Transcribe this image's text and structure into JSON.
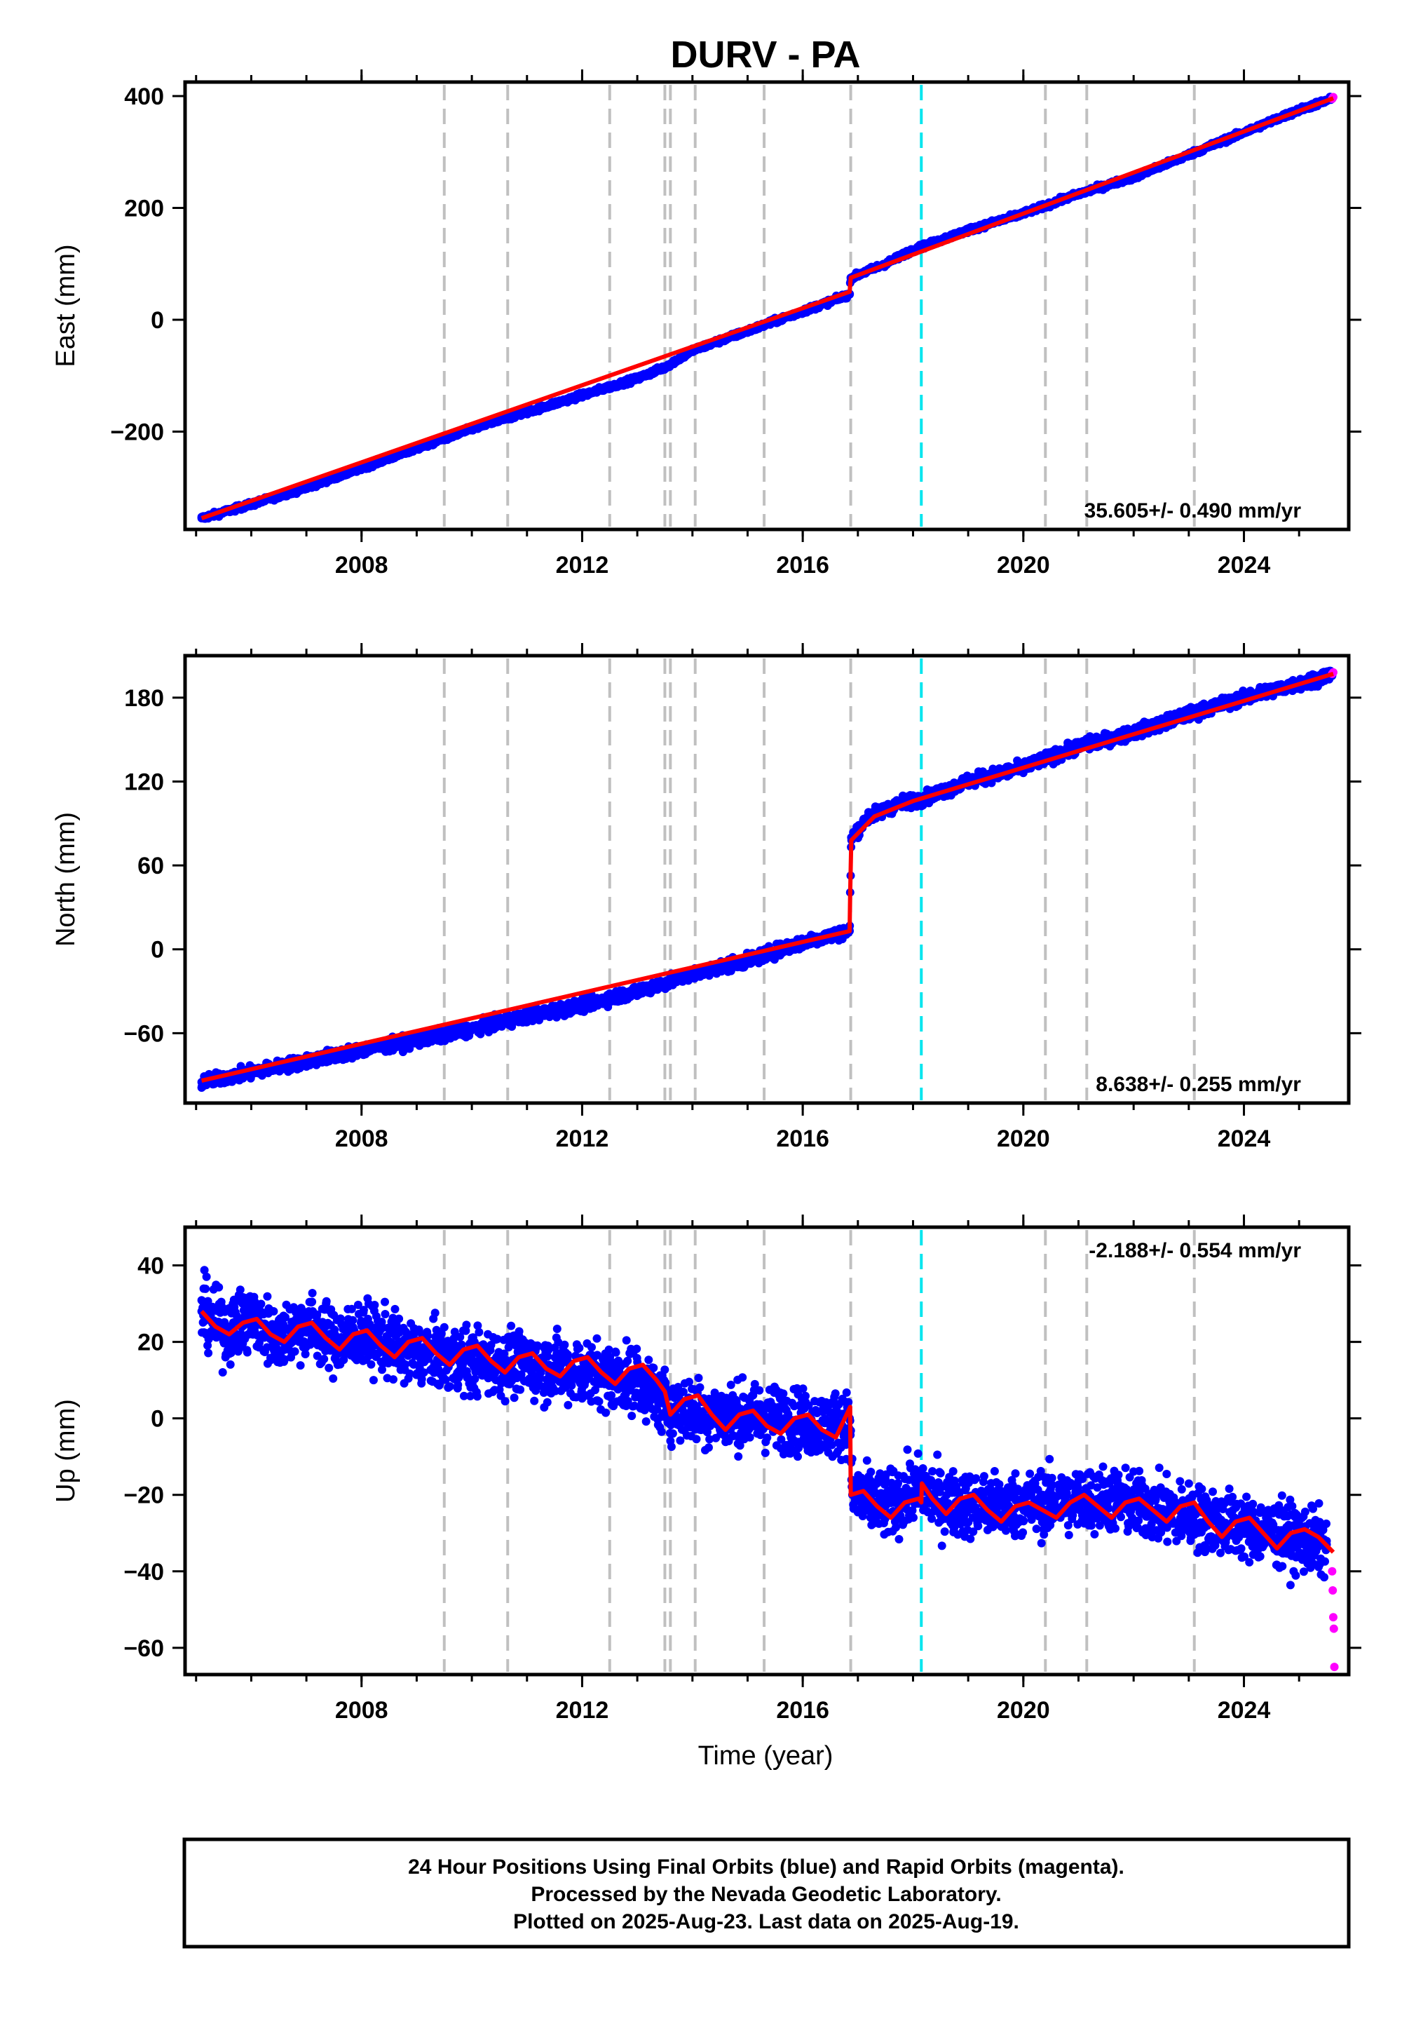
{
  "title": "DURV - PA",
  "xlabel": "Time (year)",
  "footer": {
    "line1": "24 Hour Positions Using Final Orbits (blue) and Rapid Orbits (magenta).",
    "line2": "Processed by the Nevada Geodetic Laboratory.",
    "line3": "Plotted on 2025-Aug-23. Last data on 2025-Aug-19."
  },
  "colors": {
    "final": "#0000ff",
    "rapid": "#ff00ff",
    "model": "#ff0000",
    "event": "#c0c0c0",
    "antenna": "#00e5ee"
  },
  "chart_data": [
    {
      "type": "scatter",
      "panel": "east",
      "ylabel": "East (mm)",
      "rate": "35.605+/- 0.490 mm/yr",
      "xlim": [
        2004.8,
        2025.9
      ],
      "ylim": [
        -375,
        425
      ],
      "xticks": [
        2008,
        2012,
        2016,
        2020,
        2024
      ],
      "yticks": [
        -200,
        0,
        200,
        400
      ],
      "series": [
        {
          "kind": "final",
          "x": [
            2005.1,
            2006.0,
            2007.0,
            2008.0,
            2009.0,
            2010.0,
            2011.0,
            2012.0,
            2013.0,
            2013.5,
            2014.0,
            2015.0,
            2016.0,
            2016.85,
            2016.87,
            2017.5,
            2018.0,
            2019.0,
            2020.0,
            2021.0,
            2022.0,
            2023.0,
            2024.0,
            2025.0,
            2025.6
          ],
          "y": [
            -355,
            -330,
            -300,
            -265,
            -230,
            -195,
            -165,
            -135,
            -105,
            -85,
            -55,
            -20,
            15,
            45,
            75,
            100,
            125,
            160,
            190,
            225,
            255,
            295,
            335,
            375,
            395
          ]
        },
        {
          "kind": "rapid",
          "x": [
            2025.6,
            2025.62
          ],
          "y": [
            395,
            398
          ]
        }
      ],
      "model": {
        "x": [
          2005.1,
          2016.85,
          2016.87,
          2025.62
        ],
        "y": [
          -355,
          50,
          75,
          396
        ]
      },
      "offsets": [
        2009.5,
        2010.65,
        2012.5,
        2013.5,
        2013.6,
        2014.05,
        2015.3,
        2016.87,
        2020.4,
        2021.15,
        2023.1
      ],
      "antenna_change": 2018.15
    },
    {
      "type": "scatter",
      "panel": "north",
      "ylabel": "North (mm)",
      "rate": "8.638+/- 0.255 mm/yr",
      "xlim": [
        2004.8,
        2025.9
      ],
      "ylim": [
        -110,
        210
      ],
      "xticks": [
        2008,
        2012,
        2016,
        2020,
        2024
      ],
      "yticks": [
        -60,
        0,
        60,
        120,
        180
      ],
      "series": [
        {
          "kind": "final",
          "x": [
            2005.1,
            2006.0,
            2007.0,
            2008.0,
            2009.0,
            2010.0,
            2011.0,
            2012.0,
            2013.0,
            2014.0,
            2015.0,
            2016.0,
            2016.85,
            2016.88,
            2017.2,
            2017.8,
            2018.2,
            2019.0,
            2020.0,
            2021.0,
            2022.0,
            2023.0,
            2024.0,
            2025.0,
            2025.6
          ],
          "y": [
            -95,
            -88,
            -80,
            -72,
            -65,
            -57,
            -48,
            -40,
            -30,
            -18,
            -8,
            5,
            13,
            80,
            95,
            105,
            108,
            120,
            130,
            145,
            155,
            168,
            180,
            190,
            197
          ]
        },
        {
          "kind": "rapid",
          "x": [
            2025.6,
            2025.62
          ],
          "y": [
            197,
            198
          ]
        }
      ],
      "model": {
        "x": [
          2005.1,
          2016.85,
          2016.86,
          2016.88,
          2017.3,
          2018.0,
          2025.62
        ],
        "y": [
          -94,
          13,
          40,
          78,
          95,
          106,
          197
        ]
      },
      "offsets": [
        2009.5,
        2010.65,
        2012.5,
        2013.5,
        2013.6,
        2014.05,
        2015.3,
        2016.87,
        2020.4,
        2021.15,
        2023.1
      ],
      "antenna_change": 2018.15
    },
    {
      "type": "scatter",
      "panel": "up",
      "ylabel": "Up (mm)",
      "rate": "-2.188+/- 0.554 mm/yr",
      "xlim": [
        2004.8,
        2025.9
      ],
      "ylim": [
        -67,
        50
      ],
      "xticks": [
        2008,
        2012,
        2016,
        2020,
        2024
      ],
      "yticks": [
        -60,
        -40,
        -20,
        0,
        20,
        40
      ],
      "series": [
        {
          "kind": "final",
          "x": [
            2005.1,
            2005.5,
            2006.0,
            2006.5,
            2007.0,
            2007.5,
            2008.0,
            2009.0,
            2010.0,
            2011.0,
            2012.0,
            2013.0,
            2013.6,
            2014.5,
            2015.5,
            2016.5,
            2016.85,
            2016.9,
            2017.5,
            2018.15,
            2018.5,
            2019.5,
            2020.5,
            2021.5,
            2022.5,
            2023.5,
            2024.5,
            2025.5
          ],
          "y": [
            28,
            23,
            26,
            21,
            25,
            20,
            22,
            17,
            15,
            14,
            12,
            10,
            3,
            1,
            0,
            -2,
            0,
            -20,
            -23,
            -18,
            -22,
            -23,
            -22,
            -21,
            -24,
            -27,
            -30,
            -33
          ]
        },
        {
          "kind": "rapid",
          "x": [
            2025.6,
            2025.61,
            2025.62,
            2025.63,
            2025.64
          ],
          "y": [
            -40,
            -45,
            -52,
            -55,
            -65
          ]
        }
      ],
      "model": {
        "x": [
          2005.1,
          2005.35,
          2005.6,
          2005.85,
          2006.1,
          2006.35,
          2006.6,
          2006.85,
          2007.1,
          2007.35,
          2007.6,
          2007.85,
          2008.1,
          2008.35,
          2008.6,
          2008.85,
          2009.1,
          2009.35,
          2009.6,
          2009.85,
          2010.1,
          2010.35,
          2010.6,
          2010.85,
          2011.1,
          2011.35,
          2011.6,
          2011.85,
          2012.1,
          2012.35,
          2012.6,
          2012.85,
          2013.1,
          2013.35,
          2013.5,
          2013.6,
          2013.85,
          2014.1,
          2014.35,
          2014.6,
          2014.85,
          2015.1,
          2015.35,
          2015.6,
          2015.85,
          2016.1,
          2016.35,
          2016.6,
          2016.86,
          2016.87,
          2017.1,
          2017.35,
          2017.6,
          2017.85,
          2018.1,
          2018.15,
          2018.16,
          2018.35,
          2018.6,
          2018.85,
          2019.1,
          2019.35,
          2019.6,
          2019.85,
          2020.1,
          2020.35,
          2020.6,
          2020.85,
          2021.1,
          2021.35,
          2021.6,
          2021.85,
          2022.1,
          2022.35,
          2022.6,
          2022.85,
          2023.1,
          2023.35,
          2023.6,
          2023.85,
          2024.1,
          2024.35,
          2024.6,
          2024.85,
          2025.1,
          2025.35,
          2025.62
        ],
        "y": [
          28,
          24,
          22,
          25,
          26,
          22,
          20,
          24,
          25,
          21,
          18,
          22,
          23,
          19,
          16,
          20,
          21,
          17,
          14,
          18,
          19,
          15,
          12,
          16,
          17,
          13,
          11,
          15,
          16,
          12,
          9,
          13,
          14,
          10,
          7,
          1,
          5,
          6,
          1,
          -3,
          1,
          2,
          -2,
          -4,
          0,
          1,
          -3,
          -5,
          3,
          -20,
          -19,
          -23,
          -26,
          -22,
          -21,
          -22,
          -17,
          -21,
          -25,
          -21,
          -20,
          -24,
          -27,
          -23,
          -22,
          -24,
          -26,
          -22,
          -20,
          -23,
          -26,
          -22,
          -21,
          -24,
          -27,
          -23,
          -22,
          -27,
          -31,
          -27,
          -26,
          -30,
          -34,
          -30,
          -29,
          -31,
          -35
        ]
      },
      "offsets": [
        2009.5,
        2010.65,
        2012.5,
        2013.5,
        2013.6,
        2014.05,
        2015.3,
        2016.87,
        2020.4,
        2021.15,
        2023.1
      ],
      "antenna_change": 2018.15
    }
  ]
}
